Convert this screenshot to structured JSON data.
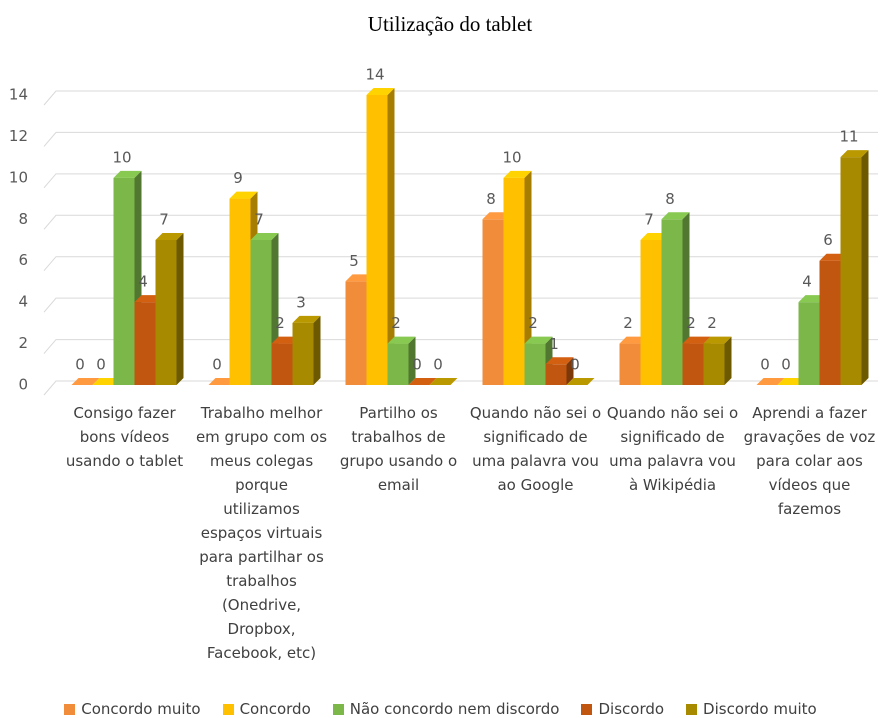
{
  "chart_data": {
    "type": "bar3d",
    "title": "Utilização do tablet",
    "categories": [
      "Consigo fazer bons vídeos usando o tablet",
      "Trabalho melhor em grupo com os meus colegas porque utilizamos espaços virtuais para partilhar os trabalhos (Onedrive, Dropbox, Facebook, etc)",
      "Partilho os trabalhos de grupo usando o email",
      "Quando não sei o significado de uma palavra vou ao Google",
      "Quando não sei o significado de uma palavra vou à Wikipédia",
      "Aprendi a fazer gravações de voz para colar aos vídeos que fazemos"
    ],
    "series": [
      {
        "name": "Concordo muito",
        "color": "#f08c3a",
        "values": [
          0,
          0,
          5,
          8,
          2,
          0
        ]
      },
      {
        "name": "Concordo",
        "color": "#ffc000",
        "values": [
          0,
          9,
          14,
          10,
          7,
          0
        ]
      },
      {
        "name": "Não concordo nem discordo",
        "color": "#7cb74a",
        "values": [
          10,
          7,
          2,
          2,
          8,
          4
        ]
      },
      {
        "name": "Discordo",
        "color": "#c0560f",
        "values": [
          4,
          2,
          0,
          1,
          2,
          6
        ]
      },
      {
        "name": "Discordo muito",
        "color": "#a88a00",
        "values": [
          7,
          3,
          0,
          0,
          2,
          11
        ]
      }
    ],
    "ylim": [
      0,
      14
    ],
    "yticks": [
      0,
      2,
      4,
      6,
      8,
      10,
      12,
      14
    ],
    "grid": true,
    "legend": "bottom"
  }
}
